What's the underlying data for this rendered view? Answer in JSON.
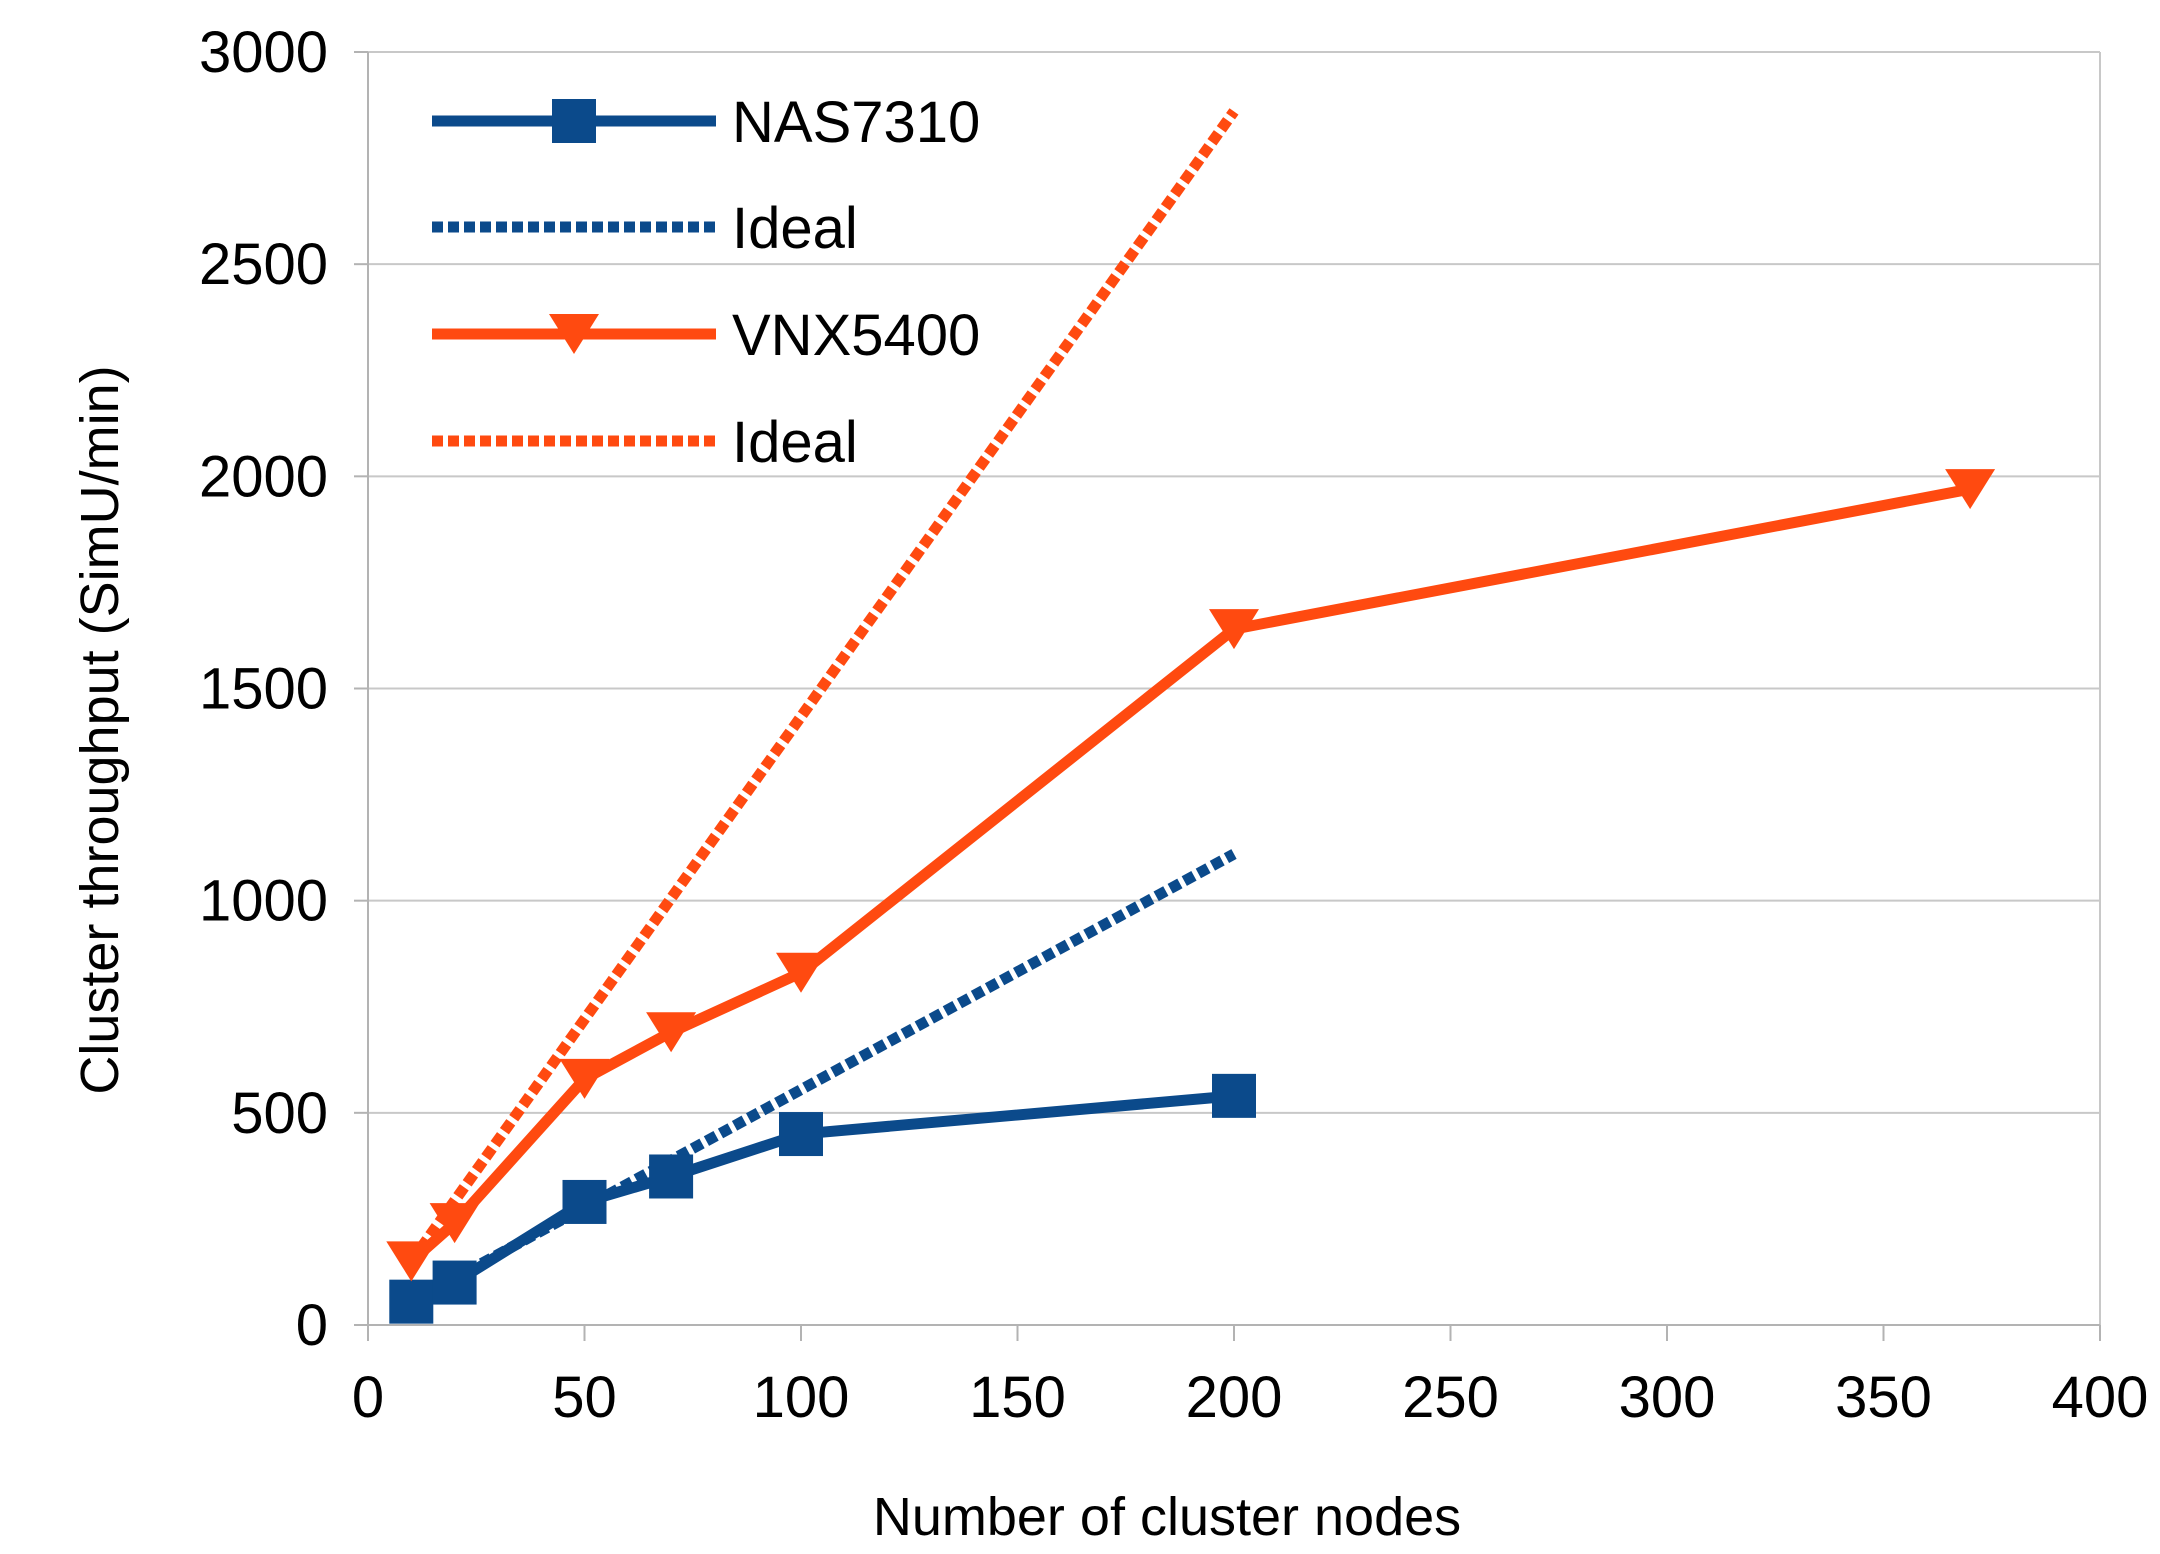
{
  "chart_data": {
    "type": "line",
    "title": "",
    "xlabel": "Number of cluster nodes",
    "ylabel": "Cluster throughput (SimU/min)",
    "xlim": [
      0,
      400
    ],
    "ylim": [
      0,
      3000
    ],
    "xticks": [
      0,
      50,
      100,
      150,
      200,
      250,
      300,
      350,
      400
    ],
    "yticks": [
      0,
      500,
      1000,
      1500,
      2000,
      2500,
      3000
    ],
    "grid": "horizontal",
    "legend_position": "top-left",
    "series": [
      {
        "name": "NAS7310",
        "color": "#0b4a8b",
        "style": "solid",
        "marker": "square",
        "x": [
          10,
          20,
          50,
          70,
          100,
          200
        ],
        "y": [
          55,
          100,
          290,
          350,
          450,
          540
        ]
      },
      {
        "name": "Ideal",
        "color": "#0b4a8b",
        "style": "dotted",
        "marker": "none",
        "x": [
          10,
          200
        ],
        "y": [
          55,
          1110
        ]
      },
      {
        "name": "VNX5400",
        "color": "#ff4a10",
        "style": "solid",
        "marker": "triangle-down",
        "x": [
          10,
          20,
          50,
          70,
          100,
          200,
          370
        ],
        "y": [
          150,
          240,
          580,
          690,
          830,
          1640,
          1970
        ]
      },
      {
        "name": "Ideal",
        "color": "#ff4a10",
        "style": "dotted",
        "marker": "none",
        "x": [
          10,
          200
        ],
        "y": [
          150,
          2860
        ]
      }
    ]
  }
}
